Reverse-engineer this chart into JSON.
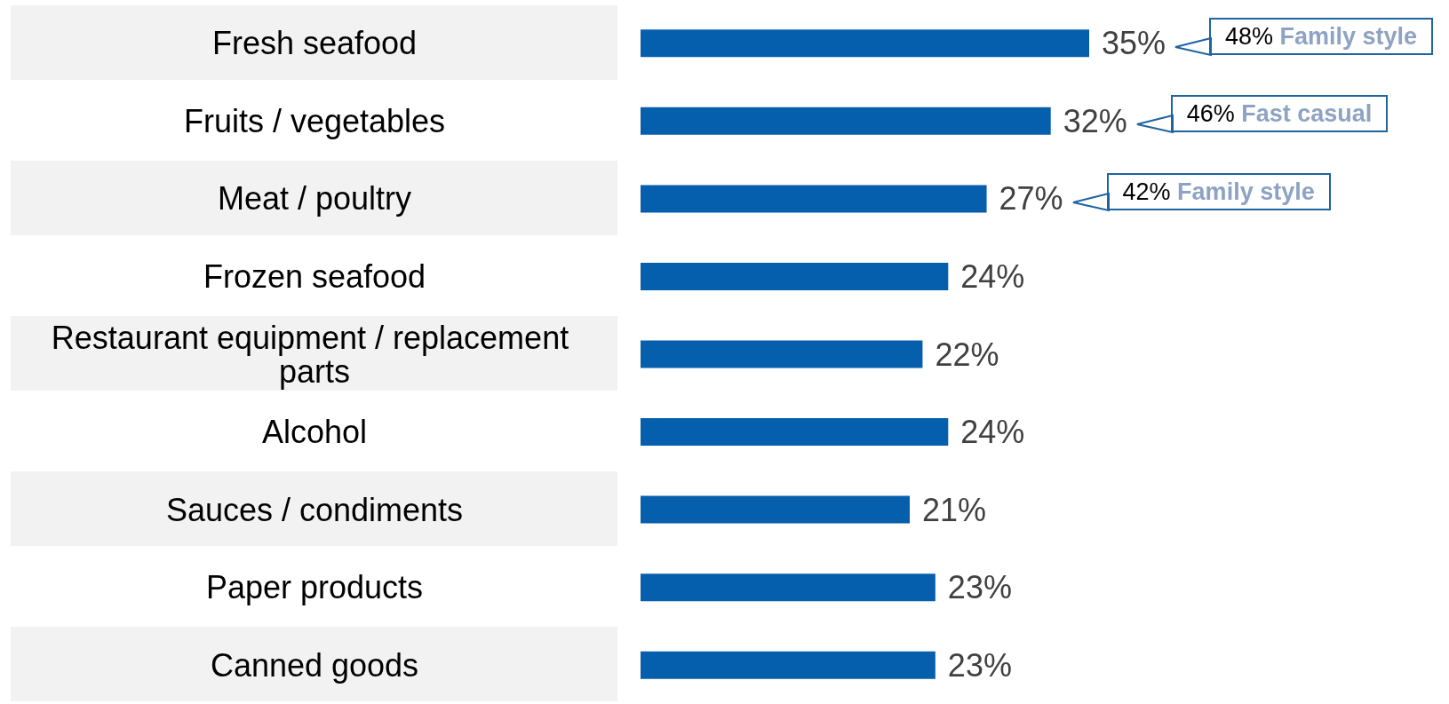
{
  "chart_data": {
    "type": "bar",
    "orientation": "horizontal",
    "categories": [
      "Fresh seafood",
      "Fruits / vegetables",
      "Meat / poultry",
      "Frozen seafood",
      "Restaurant equipment / replacement parts",
      "Alcohol",
      "Sauces / condiments",
      "Paper products",
      "Canned goods"
    ],
    "values": [
      35,
      32,
      27,
      24,
      22,
      24,
      21,
      23,
      23
    ],
    "value_labels": [
      "35%",
      "32%",
      "27%",
      "24%",
      "22%",
      "24%",
      "21%",
      "23%",
      "23%"
    ],
    "color": "#065fac",
    "annotations": [
      "48% Family style",
      "46% Fast casual",
      "42% Family style"
    ]
  }
}
